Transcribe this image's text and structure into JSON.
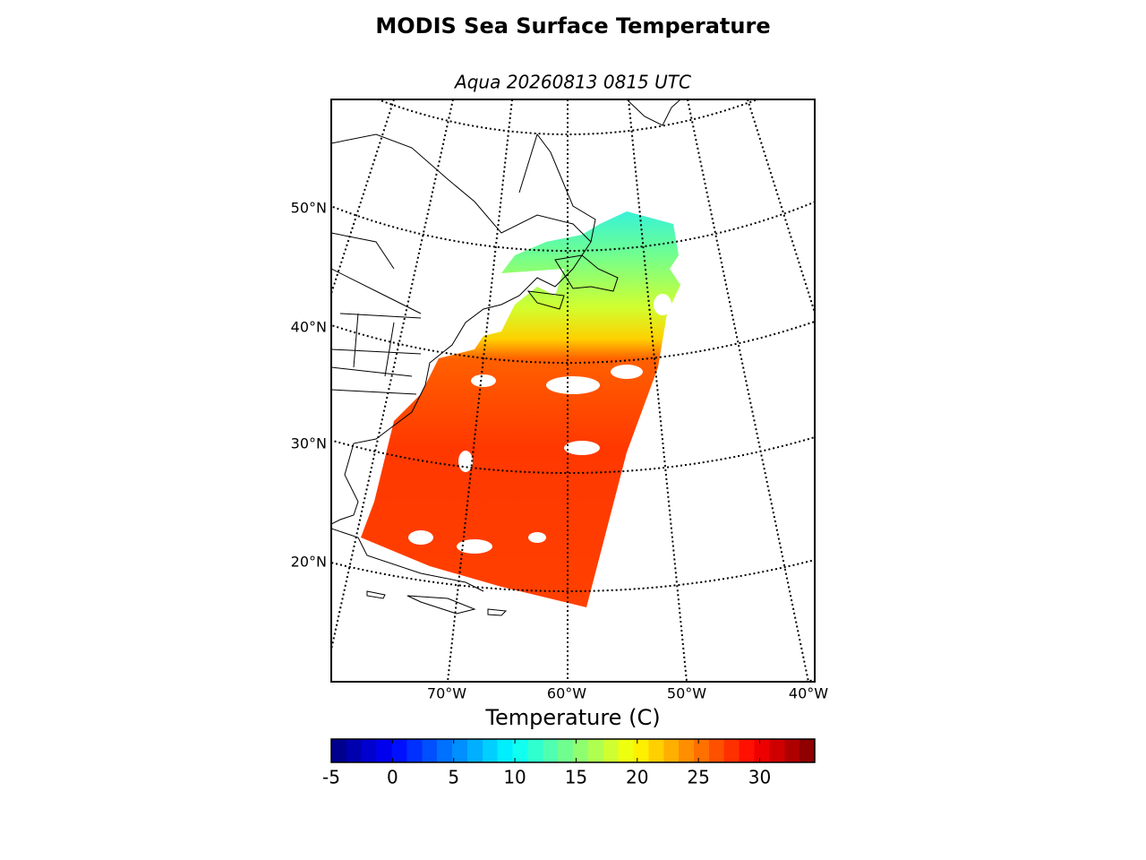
{
  "title": "MODIS Sea Surface Temperature",
  "subtitle": "Aqua 20260813 0815 UTC",
  "map": {
    "lat_labels": [
      "50°N",
      "40°N",
      "30°N",
      "20°N"
    ],
    "lon_labels": [
      "70°W",
      "60°W",
      "50°W",
      "40°W"
    ]
  },
  "colorbar": {
    "label": "Temperature (C)",
    "range": [
      -5,
      34.5
    ],
    "ticks": [
      -5,
      0,
      5,
      10,
      15,
      20,
      25,
      30
    ]
  }
}
